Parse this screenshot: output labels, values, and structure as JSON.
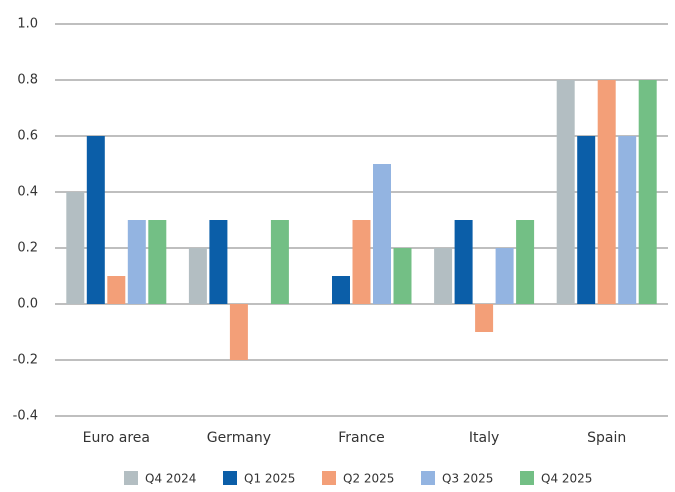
{
  "chart_data": {
    "type": "bar",
    "categories": [
      "Euro area",
      "Germany",
      "France",
      "Italy",
      "Spain"
    ],
    "series": [
      {
        "name": "Q4 2024",
        "color": "#b3bec2",
        "values": [
          0.4,
          0.2,
          0,
          0.2,
          0.8
        ]
      },
      {
        "name": "Q1 2025",
        "color": "#0b5ea8",
        "values": [
          0.6,
          0.3,
          0.1,
          0.3,
          0.6
        ]
      },
      {
        "name": "Q2 2025",
        "color": "#f39f78",
        "values": [
          0.1,
          -0.2,
          0.3,
          -0.1,
          0.8
        ]
      },
      {
        "name": "Q3 2025",
        "color": "#93b4e1",
        "values": [
          0.3,
          0,
          0.5,
          0.2,
          0.6
        ]
      },
      {
        "name": "Q4 2025",
        "color": "#73bf85",
        "values": [
          0.3,
          0.3,
          0.2,
          0.3,
          0.8
        ]
      }
    ],
    "ylim": [
      -0.4,
      1
    ],
    "yticks": [
      -0.4,
      -0.2,
      {
        "value": 0,
        "label": "0.0"
      },
      0.2,
      0.4,
      0.6,
      0.8,
      {
        "value": 1,
        "label": "1.0"
      }
    ],
    "grid": true
  }
}
